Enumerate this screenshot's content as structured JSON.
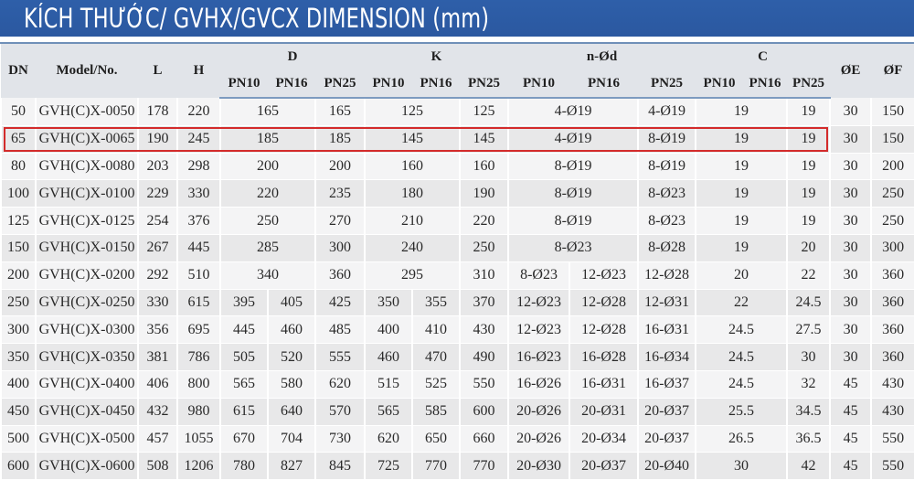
{
  "title": "KÍCH THƯỚC/ GVHX/GVCX DIMENSION (mm)",
  "headers": {
    "dn": "DN",
    "model": "Model/No.",
    "l": "L",
    "h": "H",
    "d": "D",
    "k": "K",
    "nod": "n-Ød",
    "c": "C",
    "oe": "ØE",
    "of": "ØF",
    "pn10": "PN10",
    "pn16": "PN16",
    "pn25": "PN25"
  },
  "highlight_color": "#d32b2b",
  "highlighted_row_dn": "65",
  "rows": [
    {
      "dn": "50",
      "model": "GVH(C)X-0050",
      "l": "178",
      "h": "220",
      "d": [
        "165",
        "165"
      ],
      "k": [
        "125",
        "125"
      ],
      "nod": [
        "4-Ø19",
        "4-Ø19"
      ],
      "c": [
        "19",
        "19"
      ],
      "oe": "30",
      "of": "150"
    },
    {
      "dn": "65",
      "model": "GVH(C)X-0065",
      "l": "190",
      "h": "245",
      "d": [
        "185",
        "185"
      ],
      "k": [
        "145",
        "145"
      ],
      "nod": [
        "4-Ø19",
        "8-Ø19"
      ],
      "c": [
        "19",
        "19"
      ],
      "oe": "30",
      "of": "150"
    },
    {
      "dn": "80",
      "model": "GVH(C)X-0080",
      "l": "203",
      "h": "298",
      "d": [
        "200",
        "200"
      ],
      "k": [
        "160",
        "160"
      ],
      "nod": [
        "8-Ø19",
        "8-Ø19"
      ],
      "c": [
        "19",
        "19"
      ],
      "oe": "30",
      "of": "200"
    },
    {
      "dn": "100",
      "model": "GVH(C)X-0100",
      "l": "229",
      "h": "330",
      "d": [
        "220",
        "235"
      ],
      "k": [
        "180",
        "190"
      ],
      "nod": [
        "8-Ø19",
        "8-Ø23"
      ],
      "c": [
        "19",
        "19"
      ],
      "oe": "30",
      "of": "250"
    },
    {
      "dn": "125",
      "model": "GVH(C)X-0125",
      "l": "254",
      "h": "376",
      "d": [
        "250",
        "270"
      ],
      "k": [
        "210",
        "220"
      ],
      "nod": [
        "8-Ø19",
        "8-Ø23"
      ],
      "c": [
        "19",
        "19"
      ],
      "oe": "30",
      "of": "250"
    },
    {
      "dn": "150",
      "model": "GVH(C)X-0150",
      "l": "267",
      "h": "445",
      "d": [
        "285",
        "300"
      ],
      "k": [
        "240",
        "250"
      ],
      "nod": [
        "8-Ø23",
        "8-Ø28"
      ],
      "c": [
        "19",
        "20"
      ],
      "oe": "30",
      "of": "300"
    },
    {
      "dn": "200",
      "model": "GVH(C)X-0200",
      "l": "292",
      "h": "510",
      "d": [
        "340",
        "360"
      ],
      "k": [
        "295",
        "310"
      ],
      "nod": [
        "8-Ø23",
        "12-Ø23",
        "12-Ø28"
      ],
      "c": [
        "20",
        "22"
      ],
      "oe": "30",
      "of": "360"
    },
    {
      "dn": "250",
      "model": "GVH(C)X-0250",
      "l": "330",
      "h": "615",
      "d": [
        "395",
        "405",
        "425"
      ],
      "k": [
        "350",
        "355",
        "370"
      ],
      "nod": [
        "12-Ø23",
        "12-Ø28",
        "12-Ø31"
      ],
      "c": [
        "22",
        "24.5"
      ],
      "oe": "30",
      "of": "360"
    },
    {
      "dn": "300",
      "model": "GVH(C)X-0300",
      "l": "356",
      "h": "695",
      "d": [
        "445",
        "460",
        "485"
      ],
      "k": [
        "400",
        "410",
        "430"
      ],
      "nod": [
        "12-Ø23",
        "12-Ø28",
        "16-Ø31"
      ],
      "c": [
        "24.5",
        "27.5"
      ],
      "oe": "30",
      "of": "360"
    },
    {
      "dn": "350",
      "model": "GVH(C)X-0350",
      "l": "381",
      "h": "786",
      "d": [
        "505",
        "520",
        "555"
      ],
      "k": [
        "460",
        "470",
        "490"
      ],
      "nod": [
        "16-Ø23",
        "16-Ø28",
        "16-Ø34"
      ],
      "c": [
        "24.5",
        "30"
      ],
      "oe": "30",
      "of": "360"
    },
    {
      "dn": "400",
      "model": "GVH(C)X-0400",
      "l": "406",
      "h": "800",
      "d": [
        "565",
        "580",
        "620"
      ],
      "k": [
        "515",
        "525",
        "550"
      ],
      "nod": [
        "16-Ø26",
        "16-Ø31",
        "16-Ø37"
      ],
      "c": [
        "24.5",
        "32"
      ],
      "oe": "45",
      "of": "430"
    },
    {
      "dn": "450",
      "model": "GVH(C)X-0450",
      "l": "432",
      "h": "980",
      "d": [
        "615",
        "640",
        "570"
      ],
      "k": [
        "565",
        "585",
        "600"
      ],
      "nod": [
        "20-Ø26",
        "20-Ø31",
        "20-Ø37"
      ],
      "c": [
        "25.5",
        "34.5"
      ],
      "oe": "45",
      "of": "430"
    },
    {
      "dn": "500",
      "model": "GVH(C)X-0500",
      "l": "457",
      "h": "1055",
      "d": [
        "670",
        "704",
        "730"
      ],
      "k": [
        "620",
        "650",
        "660"
      ],
      "nod": [
        "20-Ø26",
        "20-Ø34",
        "20-Ø37"
      ],
      "c": [
        "26.5",
        "36.5"
      ],
      "oe": "45",
      "of": "550"
    },
    {
      "dn": "600",
      "model": "GVH(C)X-0600",
      "l": "508",
      "h": "1206",
      "d": [
        "780",
        "827",
        "845"
      ],
      "k": [
        "725",
        "770",
        "770"
      ],
      "nod": [
        "20-Ø30",
        "20-Ø37",
        "20-Ø40"
      ],
      "c": [
        "30",
        "42"
      ],
      "oe": "45",
      "of": "550"
    }
  ]
}
